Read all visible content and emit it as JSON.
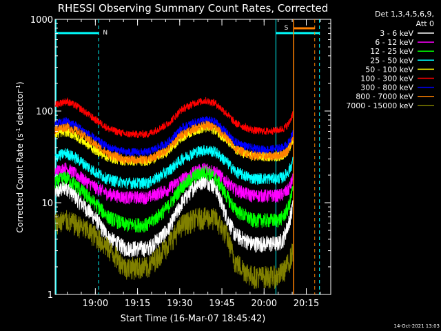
{
  "chart_data": {
    "type": "line",
    "title": "RHESSI Observing Summary Count Rates, Corrected",
    "xlabel": "Start Time (16-Mar-07 18:45:42)",
    "ylabel_main": "Corrected Count Rate (s",
    "ylabel_sup1": "-1",
    "ylabel_mid": " detector",
    "ylabel_sup2": "-1",
    "ylabel_end": ")",
    "y_scale": "log",
    "ylim": [
      1,
      1000
    ],
    "x_range_minutes": [
      0,
      98
    ],
    "x_ticks": [
      {
        "label": "19:00",
        "min": 14.3
      },
      {
        "label": "19:15",
        "min": 29.3
      },
      {
        "label": "19:30",
        "min": 44.3
      },
      {
        "label": "19:45",
        "min": 59.3
      },
      {
        "label": "20:00",
        "min": 74.3
      },
      {
        "label": "20:15",
        "min": 89.3
      }
    ],
    "y_ticks": [
      {
        "label": "1",
        "value": 1
      },
      {
        "label": "10",
        "value": 10
      },
      {
        "label": "100",
        "value": 100
      },
      {
        "label": "1000",
        "value": 1000
      }
    ],
    "legend": {
      "position": "top-right",
      "header1": "Det 1,3,4,5,6,9,",
      "header2": "Att 0"
    },
    "series": [
      {
        "name": "3 - 6 keV",
        "color": "#ffffff",
        "points": [
          [
            0,
            13
          ],
          [
            4,
            15
          ],
          [
            8,
            11
          ],
          [
            14,
            7
          ],
          [
            19,
            4.2
          ],
          [
            25,
            3.2
          ],
          [
            33,
            3.2
          ],
          [
            40,
            5
          ],
          [
            45,
            10
          ],
          [
            50,
            16
          ],
          [
            53.5,
            18
          ],
          [
            57,
            15
          ],
          [
            61,
            7
          ],
          [
            64,
            4.5
          ],
          [
            70,
            3.6
          ],
          [
            75,
            3.6
          ],
          [
            79,
            3.6
          ],
          [
            81,
            4
          ],
          [
            83,
            6
          ],
          [
            84.5,
            9
          ]
        ]
      },
      {
        "name": "6 - 12 keV",
        "color": "#ff00ff",
        "points": [
          [
            0,
            22
          ],
          [
            4,
            24
          ],
          [
            8,
            20
          ],
          [
            14,
            15
          ],
          [
            19,
            12.5
          ],
          [
            25,
            11.5
          ],
          [
            33,
            11.5
          ],
          [
            40,
            14
          ],
          [
            45,
            18
          ],
          [
            50,
            22
          ],
          [
            53.5,
            24
          ],
          [
            57,
            22
          ],
          [
            61,
            17
          ],
          [
            64,
            14
          ],
          [
            70,
            12
          ],
          [
            75,
            12
          ],
          [
            79,
            12
          ],
          [
            81,
            12.5
          ],
          [
            83,
            14
          ],
          [
            84.5,
            18
          ]
        ]
      },
      {
        "name": "12 - 25 keV",
        "color": "#00ff00",
        "points": [
          [
            0,
            17
          ],
          [
            4,
            19
          ],
          [
            8,
            15
          ],
          [
            14,
            10
          ],
          [
            19,
            7
          ],
          [
            25,
            5.8
          ],
          [
            33,
            5.8
          ],
          [
            40,
            9
          ],
          [
            45,
            15
          ],
          [
            50,
            20
          ],
          [
            53.5,
            22
          ],
          [
            57,
            19
          ],
          [
            61,
            12
          ],
          [
            64,
            8.5
          ],
          [
            70,
            6.5
          ],
          [
            75,
            6.5
          ],
          [
            79,
            6.5
          ],
          [
            81,
            7
          ],
          [
            83,
            9
          ],
          [
            84.5,
            14
          ]
        ]
      },
      {
        "name": "25 - 50 keV",
        "color": "#00ffff",
        "points": [
          [
            0,
            32
          ],
          [
            4,
            35
          ],
          [
            8,
            30
          ],
          [
            14,
            22
          ],
          [
            19,
            18
          ],
          [
            25,
            16.5
          ],
          [
            33,
            16.5
          ],
          [
            40,
            22
          ],
          [
            45,
            30
          ],
          [
            50,
            36
          ],
          [
            53.5,
            38
          ],
          [
            57,
            36
          ],
          [
            61,
            28
          ],
          [
            64,
            22
          ],
          [
            70,
            18.5
          ],
          [
            75,
            18.5
          ],
          [
            79,
            18.5
          ],
          [
            81,
            19
          ],
          [
            83,
            22
          ],
          [
            84.5,
            28
          ]
        ]
      },
      {
        "name": "50 - 100 keV",
        "color": "#ffff00",
        "points": [
          [
            0,
            56
          ],
          [
            4,
            60
          ],
          [
            8,
            52
          ],
          [
            14,
            38
          ],
          [
            19,
            31
          ],
          [
            25,
            28.5
          ],
          [
            33,
            28.5
          ],
          [
            40,
            36
          ],
          [
            45,
            52
          ],
          [
            50,
            62
          ],
          [
            53.5,
            66
          ],
          [
            57,
            62
          ],
          [
            61,
            48
          ],
          [
            64,
            38
          ],
          [
            70,
            32
          ],
          [
            75,
            32
          ],
          [
            79,
            32
          ],
          [
            81,
            33
          ],
          [
            83,
            38
          ],
          [
            84.5,
            48
          ]
        ]
      },
      {
        "name": "100 - 300 keV",
        "color": "#ff0000",
        "points": [
          [
            0,
            118
          ],
          [
            4,
            128
          ],
          [
            8,
            112
          ],
          [
            14,
            82
          ],
          [
            19,
            64
          ],
          [
            25,
            56
          ],
          [
            33,
            56
          ],
          [
            40,
            72
          ],
          [
            45,
            104
          ],
          [
            50,
            124
          ],
          [
            53.5,
            130
          ],
          [
            57,
            122
          ],
          [
            61,
            94
          ],
          [
            64,
            74
          ],
          [
            70,
            62
          ],
          [
            75,
            60
          ],
          [
            79,
            62
          ],
          [
            81,
            64
          ],
          [
            83,
            72
          ],
          [
            84.5,
            94
          ]
        ]
      },
      {
        "name": "300 - 800 keV",
        "color": "#0000ff",
        "points": [
          [
            0,
            72
          ],
          [
            4,
            78
          ],
          [
            8,
            68
          ],
          [
            14,
            50
          ],
          [
            19,
            40
          ],
          [
            25,
            35.5
          ],
          [
            33,
            35.5
          ],
          [
            40,
            45
          ],
          [
            45,
            65
          ],
          [
            50,
            76
          ],
          [
            53.5,
            80
          ],
          [
            57,
            76
          ],
          [
            61,
            58
          ],
          [
            64,
            46
          ],
          [
            70,
            39
          ],
          [
            75,
            38
          ],
          [
            79,
            39
          ],
          [
            81,
            40
          ],
          [
            83,
            45
          ],
          [
            84.5,
            57
          ]
        ]
      },
      {
        "name": "800 - 7000 keV",
        "color": "#ff8000",
        "points": [
          [
            0,
            63
          ],
          [
            4,
            68
          ],
          [
            8,
            60
          ],
          [
            14,
            44
          ],
          [
            19,
            34
          ],
          [
            25,
            29.5
          ],
          [
            33,
            29.5
          ],
          [
            40,
            38
          ],
          [
            45,
            56
          ],
          [
            50,
            66
          ],
          [
            53.5,
            71
          ],
          [
            57,
            66
          ],
          [
            61,
            51
          ],
          [
            64,
            39
          ],
          [
            70,
            33
          ],
          [
            75,
            32
          ],
          [
            79,
            33
          ],
          [
            81,
            34
          ],
          [
            83,
            38
          ],
          [
            84.5,
            49
          ]
        ]
      },
      {
        "name": "7000 - 15000 keV",
        "color": "#808000",
        "points": [
          [
            0,
            6.2
          ],
          [
            4,
            6.5
          ],
          [
            8,
            5.8
          ],
          [
            14,
            4.5
          ],
          [
            19,
            3.2
          ],
          [
            25,
            2
          ],
          [
            33,
            2
          ],
          [
            40,
            3.5
          ],
          [
            45,
            5.8
          ],
          [
            50,
            6.8
          ],
          [
            53.5,
            7
          ],
          [
            57,
            6.8
          ],
          [
            61,
            4.5
          ],
          [
            64,
            2.3
          ],
          [
            70,
            1.6
          ],
          [
            75,
            1.6
          ],
          [
            79,
            1.6
          ],
          [
            81,
            1.8
          ],
          [
            83,
            2.2
          ],
          [
            84.5,
            3
          ]
        ]
      }
    ],
    "annotations": {
      "n_label": "N",
      "s_label": "S"
    }
  },
  "footer": {
    "timestamp": "14-Oct-2021 13:03"
  }
}
